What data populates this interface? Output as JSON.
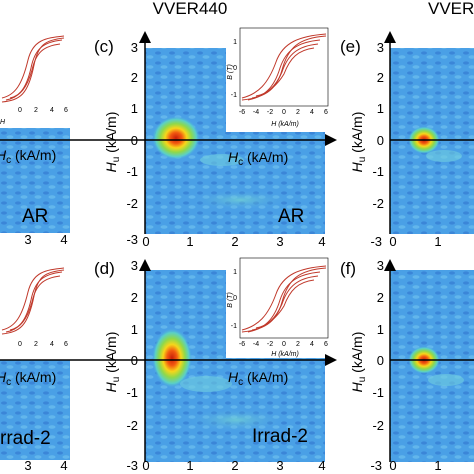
{
  "header": {
    "title_left": "VVER440",
    "title_right": "VVER"
  },
  "panels": [
    {
      "id": "left-top",
      "tag": "AR"
    },
    {
      "id": "c",
      "label": "(c)",
      "tag": "AR"
    },
    {
      "id": "e",
      "label": "(e)"
    },
    {
      "id": "left-bottom",
      "tag": "rrad-2"
    },
    {
      "id": "d",
      "label": "(d)",
      "tag": "Irrad-2"
    },
    {
      "id": "f",
      "label": "(f)"
    }
  ],
  "axes": {
    "x_label_prefix": "H",
    "x_label_sub": "c",
    "x_label_unit": " (kA/m)",
    "y_label_prefix": "H",
    "y_label_sub": "u",
    "y_label_unit": " (kA/m)",
    "y_ticks": [
      "3",
      "2",
      "1",
      "0",
      "-1",
      "-2",
      "-3"
    ],
    "x_ticks": [
      "0",
      "1",
      "2",
      "3",
      "4"
    ],
    "left_x_ticks": [
      "3",
      "4"
    ],
    "edge_x_ticks": [
      "-3",
      "0",
      "1"
    ]
  },
  "inset": {
    "y_label": "B (T)",
    "x_label": "H (kA/m)",
    "y_ticks": [
      "1",
      "0",
      "-1"
    ],
    "x_ticks": [
      "-6",
      "-4",
      "-2",
      "0",
      "2",
      "4",
      "6"
    ],
    "left_x_ticks": [
      "0",
      "2",
      "4",
      "6"
    ]
  },
  "colors": {
    "map_background": "#4aa0e6",
    "hot": "#d62a12",
    "loop": "#c0392b"
  }
}
